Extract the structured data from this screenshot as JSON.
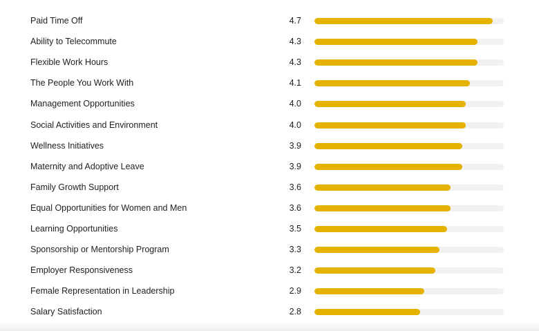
{
  "chart_data": {
    "type": "bar",
    "orientation": "horizontal",
    "categories": [
      "Paid Time Off",
      "Ability to Telecommute",
      "Flexible Work Hours",
      "The People You Work With",
      "Management Opportunities",
      "Social Activities and Environment",
      "Wellness Initiatives",
      "Maternity and Adoptive Leave",
      "Family Growth Support",
      "Equal Opportunities for Women and Men",
      "Learning Opportunities",
      "Sponsorship or Mentorship Program",
      "Employer Responsiveness",
      "Female Representation in Leadership",
      "Salary Satisfaction"
    ],
    "values": [
      4.7,
      4.3,
      4.3,
      4.1,
      4.0,
      4.0,
      3.9,
      3.9,
      3.6,
      3.6,
      3.5,
      3.3,
      3.2,
      2.9,
      2.8
    ],
    "value_labels": [
      "4.7",
      "4.3",
      "4.3",
      "4.1",
      "4.0",
      "4.0",
      "3.9",
      "3.9",
      "3.6",
      "3.6",
      "3.5",
      "3.3",
      "3.2",
      "2.9",
      "2.8"
    ],
    "xlim": [
      0,
      5
    ],
    "grid": false,
    "legend": "none",
    "colors": {
      "bar": "#E6B200",
      "track": "#F1F1F1",
      "text": "#1F1F1F"
    }
  }
}
